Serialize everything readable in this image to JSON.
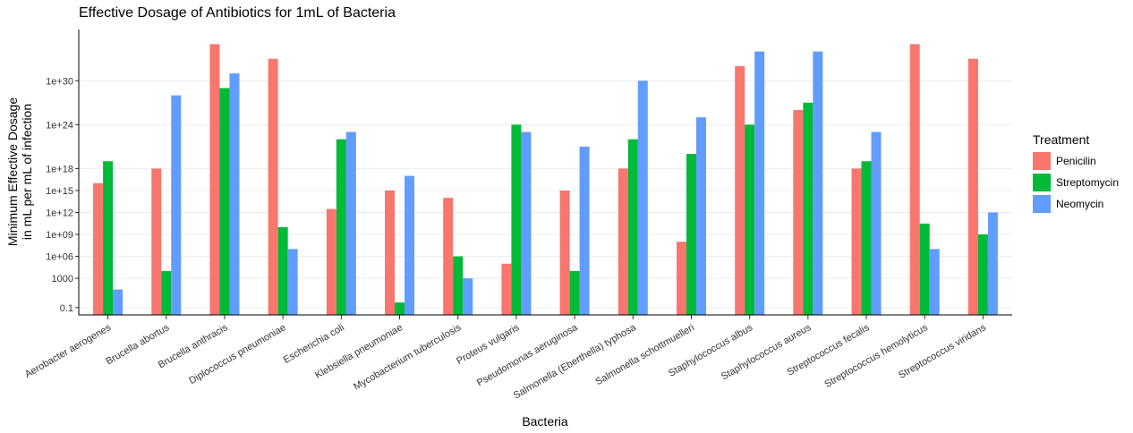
{
  "chart_data": {
    "type": "bar",
    "title": "Effective Dosage of Antibiotics for 1mL of Bacteria",
    "xlabel": "Bacteria",
    "ylabel_line1": "Minimum Effective Dosage",
    "ylabel_line2": "in mL per mL of infection",
    "y_scale": "log10",
    "ylim": [
      0.01,
      1e+37
    ],
    "y_ticks": [
      {
        "value": 0.1,
        "label": "0.1"
      },
      {
        "value": 1000,
        "label": "1000"
      },
      {
        "value": 1000000.0,
        "label": "1e+06"
      },
      {
        "value": 1000000000.0,
        "label": "1e+09"
      },
      {
        "value": 1000000000000.0,
        "label": "1e+12"
      },
      {
        "value": 1000000000000000.0,
        "label": "1e+15"
      },
      {
        "value": 1e+18,
        "label": "1e+18"
      },
      {
        "value": 1e+24,
        "label": "1e+24"
      },
      {
        "value": 1e+30,
        "label": "1e+30"
      }
    ],
    "categories": [
      "Aerobacter aerogenes",
      "Brucella abortus",
      "Brucella anthracis",
      "Diplococcus pneumoniae",
      "Escherichia coli",
      "Klebsiella pneumoniae",
      "Mycobacterium tuberculosis",
      "Proteus vulgaris",
      "Pseudomonas aeruginosa",
      "Salmonella (Eberthella) typhosa",
      "Salmonella schottmuelleri",
      "Staphylococcus albus",
      "Staphylococcus aureus",
      "Streptococcus fecalis",
      "Streptococcus hemolyticus",
      "Streptococcus viridans"
    ],
    "series": [
      {
        "name": "Penicilin",
        "color": "#f8766d",
        "values": [
          1e+16,
          1e+18,
          1e+35,
          1e+33,
          3000000000000.0,
          1000000000000000.0,
          100000000000000.0,
          100000.0,
          1000000000000000.0,
          1e+18,
          100000000.0,
          1e+32,
          1e+26,
          1e+18,
          1e+35,
          1e+33
        ]
      },
      {
        "name": "Streptomycin",
        "color": "#00ba38",
        "values": [
          1e+19,
          10000.0,
          1e+29,
          10000000000.0,
          1e+22,
          0.5,
          1000000.0,
          1e+24,
          10000.0,
          1e+22,
          1e+20,
          1e+24,
          1e+27,
          1e+19,
          30000000000.0,
          1000000000.0
        ]
      },
      {
        "name": "Neomycin",
        "color": "#619cff",
        "values": [
          30,
          1e+28,
          1e+31,
          10000000.0,
          1e+23,
          1e+17,
          1000,
          1e+23,
          1e+21,
          1e+30,
          1e+25,
          1e+34,
          1e+34,
          1e+23,
          10000000.0,
          1000000000000.0
        ]
      }
    ],
    "legend": {
      "title": "Treatment",
      "position": "right"
    },
    "grid": true
  }
}
